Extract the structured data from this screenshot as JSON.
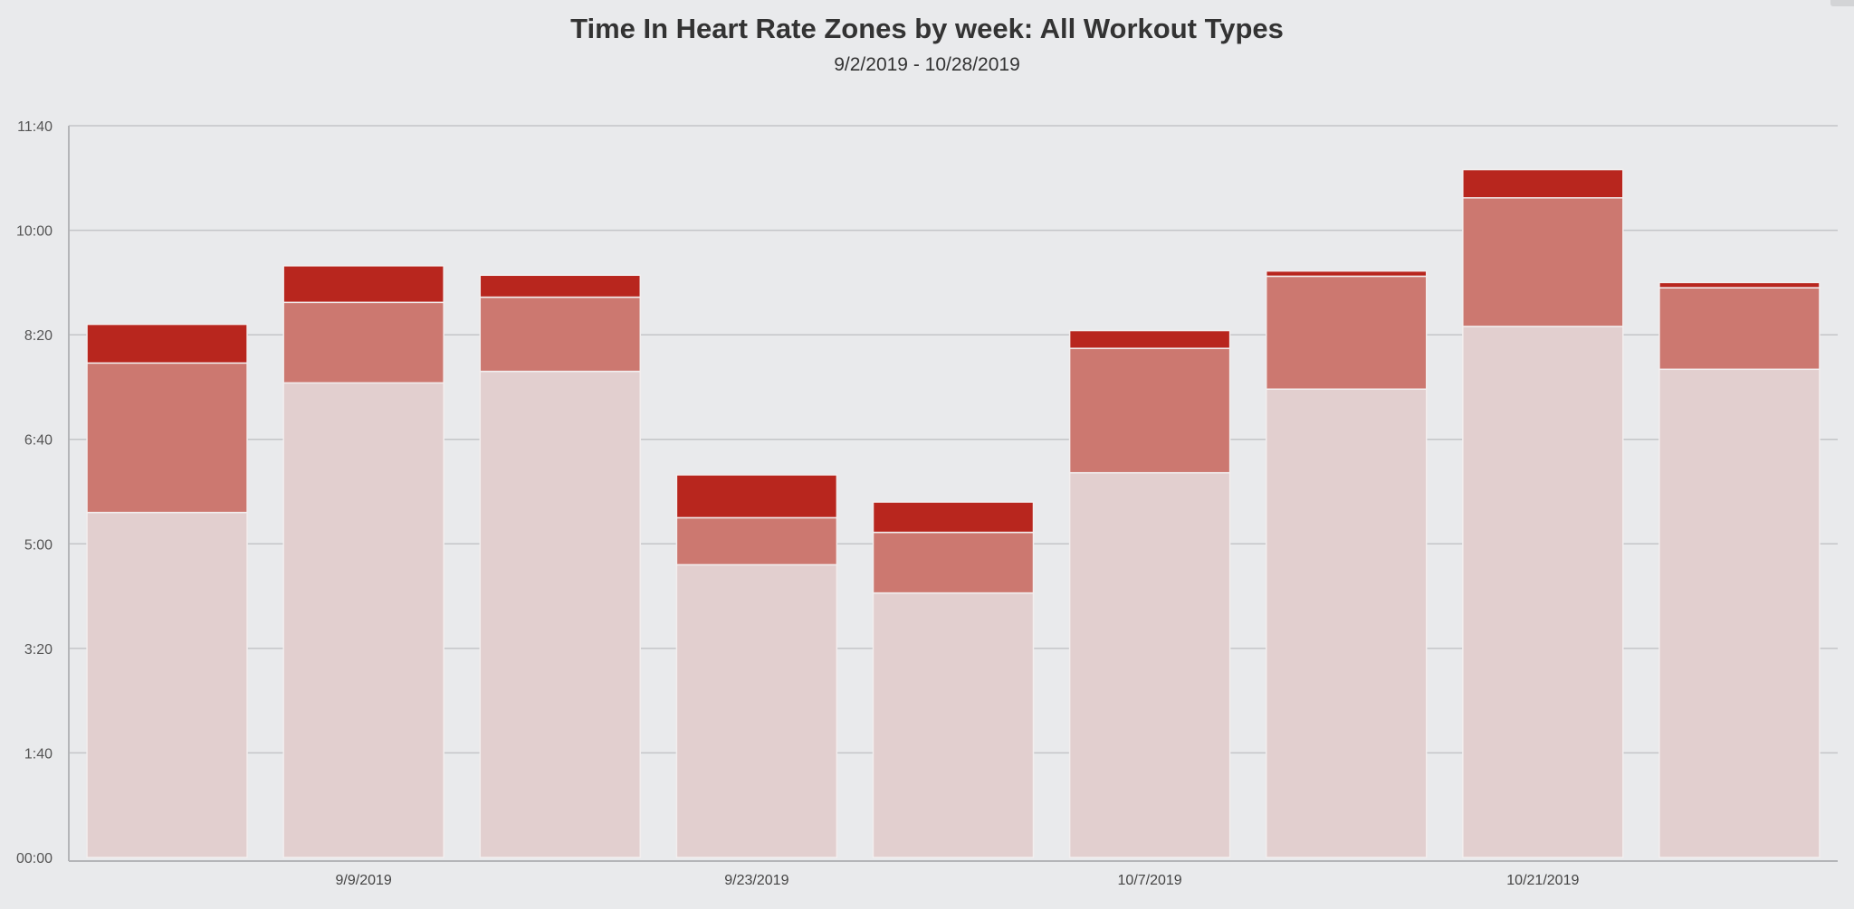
{
  "chart_data": {
    "type": "bar",
    "stacked": true,
    "title": "Time In Heart Rate Zones by week: All Workout Types",
    "subtitle": "9/2/2019 - 10/28/2019",
    "x_tick_labels": [
      "",
      "9/9/2019",
      "",
      "9/23/2019",
      "",
      "10/7/2019",
      "",
      "10/21/2019",
      ""
    ],
    "y_tick_labels": [
      "00:00",
      "1:40",
      "3:20",
      "5:00",
      "6:40",
      "8:20",
      "10:00",
      "11:40"
    ],
    "ylim_minutes": [
      0,
      700
    ],
    "grid": true,
    "legend": "none",
    "colors": [
      "#e2cfcf",
      "#cc7870",
      "#b8261e"
    ],
    "series": [
      {
        "values": [
          330,
          454,
          465,
          280,
          253,
          368,
          448,
          508,
          467
        ]
      },
      {
        "values": [
          143,
          77,
          71,
          45,
          58,
          119,
          108,
          123,
          78
        ]
      },
      {
        "values": [
          37,
          35,
          21,
          41,
          29,
          17,
          5,
          27,
          5
        ]
      }
    ]
  }
}
